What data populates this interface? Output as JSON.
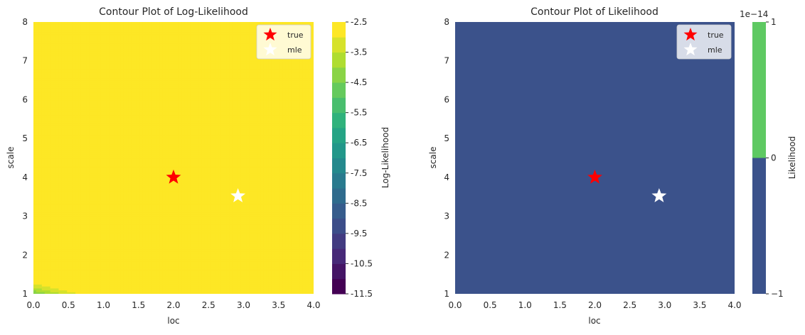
{
  "chart_data": [
    {
      "type": "contour",
      "title": "Contour Plot of Log-Likelihood",
      "xlabel": "loc",
      "ylabel": "scale",
      "xlim": [
        0,
        4
      ],
      "ylim": [
        1,
        8
      ],
      "xticks": [
        "0.0",
        "0.5",
        "1.0",
        "1.5",
        "2.0",
        "2.5",
        "3.0",
        "3.5",
        "4.0"
      ],
      "yticks": [
        "1",
        "2",
        "3",
        "4",
        "5",
        "6",
        "7",
        "8"
      ],
      "colorbar": {
        "label": "Log-Likelihood",
        "levels": [
          -11.5,
          -11.0,
          -10.5,
          -10.0,
          -9.5,
          -9.0,
          -8.5,
          -8.0,
          -7.5,
          -7.0,
          -6.5,
          -6.0,
          -5.5,
          -5.0,
          -4.5,
          -4.0,
          -3.5,
          -3.0,
          -2.5
        ],
        "tick_labels": [
          "-2.5",
          "-3.5",
          "-4.5",
          "-5.5",
          "-6.5",
          "-7.5",
          "-8.5",
          "-9.5",
          "-10.5",
          "-11.5"
        ],
        "tick_values": [
          -2.5,
          -3.5,
          -4.5,
          -5.5,
          -6.5,
          -7.5,
          -8.5,
          -9.5,
          -10.5,
          -11.5
        ],
        "colormap": "viridis"
      },
      "markers": [
        {
          "name": "true",
          "loc": 2.0,
          "scale": 4.0,
          "color": "#ff0000"
        },
        {
          "name": "mle",
          "loc": 2.92,
          "scale": 3.52,
          "color": "#ffffff"
        }
      ],
      "grid": false,
      "legend": "top-right"
    },
    {
      "type": "contour",
      "title": "Contour Plot of Likelihood",
      "xlabel": "loc",
      "ylabel": "scale",
      "xlim": [
        0,
        4
      ],
      "ylim": [
        1,
        8
      ],
      "xticks": [
        "0.0",
        "0.5",
        "1.0",
        "1.5",
        "2.0",
        "2.5",
        "3.0",
        "3.5",
        "4.0"
      ],
      "yticks": [
        "1",
        "2",
        "3",
        "4",
        "5",
        "6",
        "7",
        "8"
      ],
      "fill_color": "#3b528b",
      "colorbar": {
        "label": "Likelihood",
        "offset_text": "1e−14",
        "tick_labels": [
          "1",
          "0",
          "−1"
        ],
        "bands": [
          {
            "from": -1,
            "to": 0,
            "color": "#3b528b"
          },
          {
            "from": 0,
            "to": 1,
            "color": "#5ec962"
          }
        ]
      },
      "markers": [
        {
          "name": "true",
          "loc": 2.0,
          "scale": 4.0,
          "color": "#ff0000"
        },
        {
          "name": "mle",
          "loc": 2.92,
          "scale": 3.52,
          "color": "#ffffff"
        }
      ],
      "grid": false,
      "legend": "top-right"
    }
  ]
}
